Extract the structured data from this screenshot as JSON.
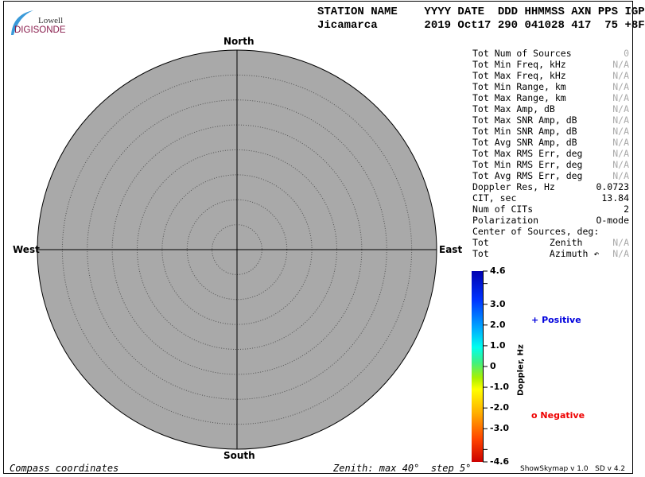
{
  "logo": {
    "line1": "Lowell",
    "line2": "DIGISONDE"
  },
  "header": {
    "labels": "STATION NAME    YYYY DATE  DDD HHMMSS AXN PPS IGP",
    "values": "Jicamarca       2019 Oct17 290 041028 417  75 +8F"
  },
  "compass": {
    "north": "North",
    "south": "South",
    "east": "East",
    "west": "West"
  },
  "stats": [
    {
      "label": "Tot Num of Sources",
      "value": "0",
      "dim": true
    },
    {
      "label": "Tot Min Freq, kHz",
      "value": "N/A",
      "dim": true
    },
    {
      "label": "Tot Max Freq, kHz",
      "value": "N/A",
      "dim": true
    },
    {
      "label": "Tot Min Range, km",
      "value": "N/A",
      "dim": true
    },
    {
      "label": "Tot Max Range, km",
      "value": "N/A",
      "dim": true
    },
    {
      "label": "Tot Max Amp, dB",
      "value": "N/A",
      "dim": true
    },
    {
      "label": "Tot Max SNR Amp, dB",
      "value": "N/A",
      "dim": true
    },
    {
      "label": "Tot Min SNR Amp, dB",
      "value": "N/A",
      "dim": true
    },
    {
      "label": "Tot Avg SNR Amp, dB",
      "value": "N/A",
      "dim": true
    },
    {
      "label": "Tot Max RMS Err, deg",
      "value": "N/A",
      "dim": true
    },
    {
      "label": "Tot Min RMS Err, deg",
      "value": "N/A",
      "dim": true
    },
    {
      "label": "Tot Avg RMS Err, deg",
      "value": "N/A",
      "dim": true
    },
    {
      "label": "Doppler Res, Hz",
      "value": "0.0723",
      "dim": false
    },
    {
      "label": "CIT, sec",
      "value": "13.84",
      "dim": false
    },
    {
      "label": "Num of CITs",
      "value": "2",
      "dim": false
    },
    {
      "label": "Polarization",
      "value": "O-mode",
      "dim": false
    },
    {
      "label": "Center of Sources, deg:",
      "value": "",
      "dim": false
    },
    {
      "label": "Tot           Zenith",
      "value": "N/A",
      "dim": true
    },
    {
      "label": "Tot           Azimuth ↶",
      "value": "N/A",
      "dim": true
    }
  ],
  "colorbar": {
    "title": "Doppler, Hz",
    "ticks": [
      "4.6",
      "3.0",
      "2.0",
      "1.0",
      "0",
      "-1.0",
      "-2.0",
      "-3.0",
      "-4.6"
    ],
    "range": [
      -4.6,
      4.6
    ]
  },
  "legend": {
    "positive": "Positive",
    "negative": "Negative",
    "positive_symbol": "+",
    "negative_symbol": "o",
    "positive_color": "#0000dd",
    "negative_color": "#ee0000"
  },
  "footer": {
    "left": "Compass coordinates",
    "center": "Zenith: max 40°  step 5°",
    "right": "ShowSkymap v 1.0   SD v 4.2"
  },
  "skymap": {
    "max_zenith_deg": 40,
    "step_deg": 5,
    "background": "#a9a9a9"
  }
}
